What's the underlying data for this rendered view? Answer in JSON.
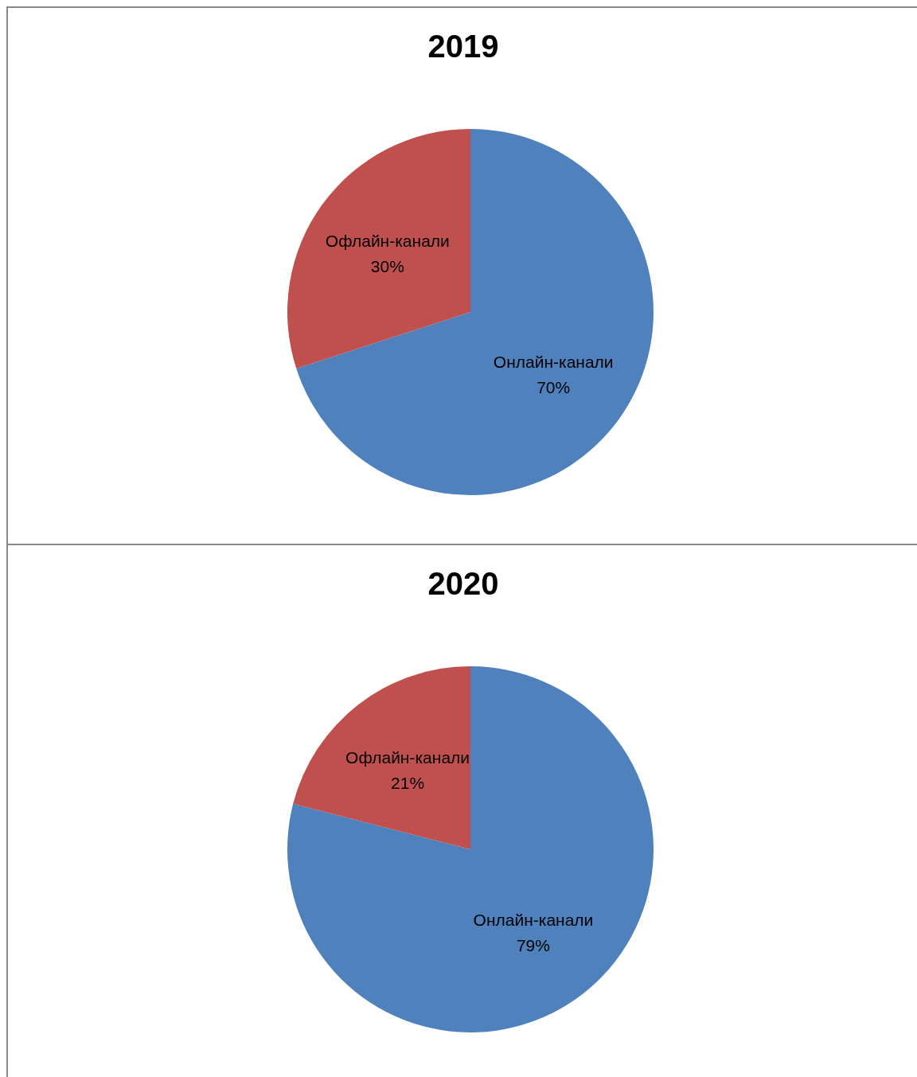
{
  "chart_data": [
    {
      "type": "pie",
      "title": "2019",
      "categories": [
        "Онлайн-канали",
        "Офлайн-канали"
      ],
      "values": [
        70,
        30
      ],
      "colors": [
        "#4f81bd",
        "#c0504d"
      ],
      "value_labels": [
        "70%",
        "30%"
      ]
    },
    {
      "type": "pie",
      "title": "2020",
      "categories": [
        "Онлайн-канали",
        "Офлайн-канали"
      ],
      "values": [
        79,
        21
      ],
      "colors": [
        "#4f81bd",
        "#c0504d"
      ],
      "value_labels": [
        "79%",
        "21%"
      ]
    }
  ]
}
